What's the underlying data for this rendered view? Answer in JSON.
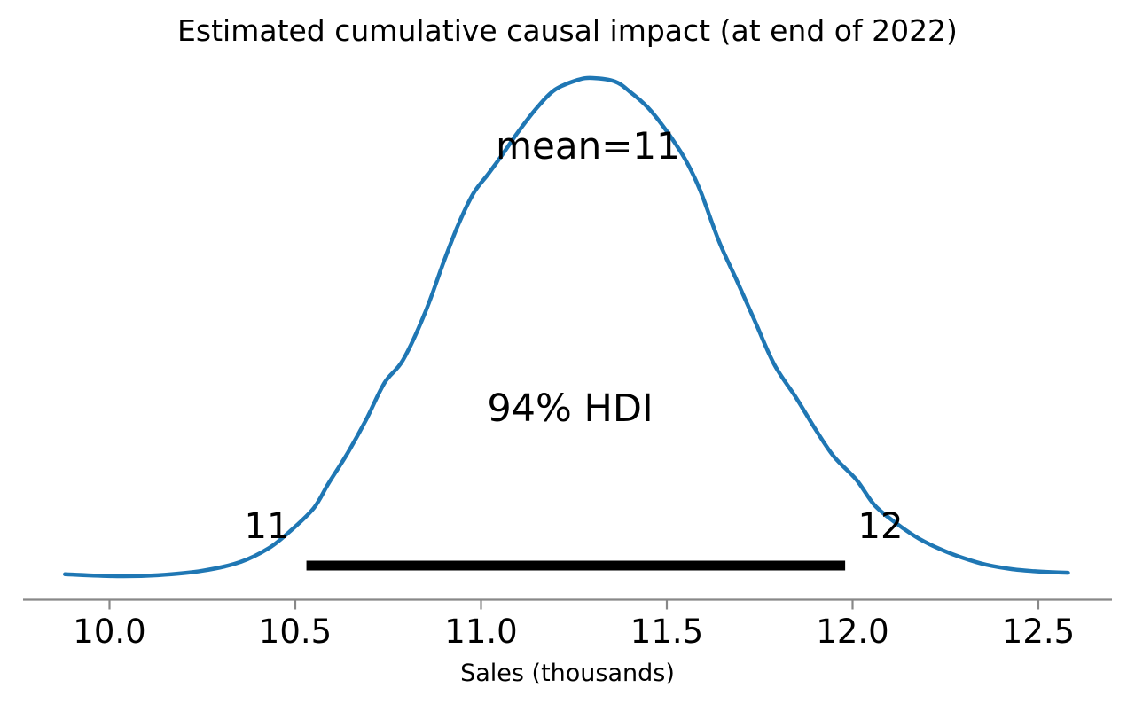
{
  "figure": {
    "title": "Estimated cumulative causal impact (at end of 2022)",
    "xlabel": "Sales (thousands)"
  },
  "chart_data": {
    "type": "line",
    "kind": "posterior-density-kde",
    "title": "Estimated cumulative causal impact (at end of 2022)",
    "xlabel": "Sales (thousands)",
    "ylabel": "",
    "xlim": [
      9.85,
      12.65
    ],
    "grid": false,
    "legend": "none",
    "x_ticks": {
      "values": [
        10.0,
        10.5,
        11.0,
        11.5,
        12.0,
        12.5
      ],
      "labels": [
        "10.0",
        "10.5",
        "11.0",
        "11.5",
        "12.0",
        "12.5"
      ]
    },
    "mean": {
      "value": 11,
      "label": "mean=11"
    },
    "hdi": {
      "prob": 0.94,
      "label": "94% HDI",
      "lower": 10.53,
      "upper": 11.98,
      "lower_label": "11",
      "upper_label": "12"
    },
    "series": [
      {
        "name": "posterior density",
        "color": "#1f77b4",
        "points": [
          [
            9.88,
            0.004
          ],
          [
            10.02,
            0.0
          ],
          [
            10.13,
            0.002
          ],
          [
            10.25,
            0.011
          ],
          [
            10.35,
            0.028
          ],
          [
            10.43,
            0.057
          ],
          [
            10.49,
            0.093
          ],
          [
            10.55,
            0.137
          ],
          [
            10.59,
            0.187
          ],
          [
            10.64,
            0.246
          ],
          [
            10.69,
            0.313
          ],
          [
            10.74,
            0.388
          ],
          [
            10.79,
            0.434
          ],
          [
            10.85,
            0.53
          ],
          [
            10.9,
            0.632
          ],
          [
            10.94,
            0.708
          ],
          [
            10.98,
            0.769
          ],
          [
            11.02,
            0.808
          ],
          [
            11.06,
            0.849
          ],
          [
            11.1,
            0.892
          ],
          [
            11.15,
            0.94
          ],
          [
            11.2,
            0.977
          ],
          [
            11.26,
            0.996
          ],
          [
            11.3,
            1.0
          ],
          [
            11.36,
            0.993
          ],
          [
            11.4,
            0.973
          ],
          [
            11.45,
            0.94
          ],
          [
            11.5,
            0.893
          ],
          [
            11.55,
            0.836
          ],
          [
            11.59,
            0.774
          ],
          [
            11.64,
            0.673
          ],
          [
            11.69,
            0.591
          ],
          [
            11.74,
            0.507
          ],
          [
            11.79,
            0.424
          ],
          [
            11.85,
            0.356
          ],
          [
            11.9,
            0.295
          ],
          [
            11.95,
            0.24
          ],
          [
            12.01,
            0.194
          ],
          [
            12.06,
            0.142
          ],
          [
            12.12,
            0.105
          ],
          [
            12.18,
            0.075
          ],
          [
            12.24,
            0.053
          ],
          [
            12.3,
            0.036
          ],
          [
            12.36,
            0.023
          ],
          [
            12.43,
            0.014
          ],
          [
            12.49,
            0.01
          ],
          [
            12.54,
            0.008
          ],
          [
            12.58,
            0.007
          ]
        ]
      }
    ],
    "colors": {
      "curve": "#1f77b4",
      "hdi_bar": "#000000",
      "axis": "#888888",
      "text": "#000000",
      "background": "#ffffff"
    }
  }
}
